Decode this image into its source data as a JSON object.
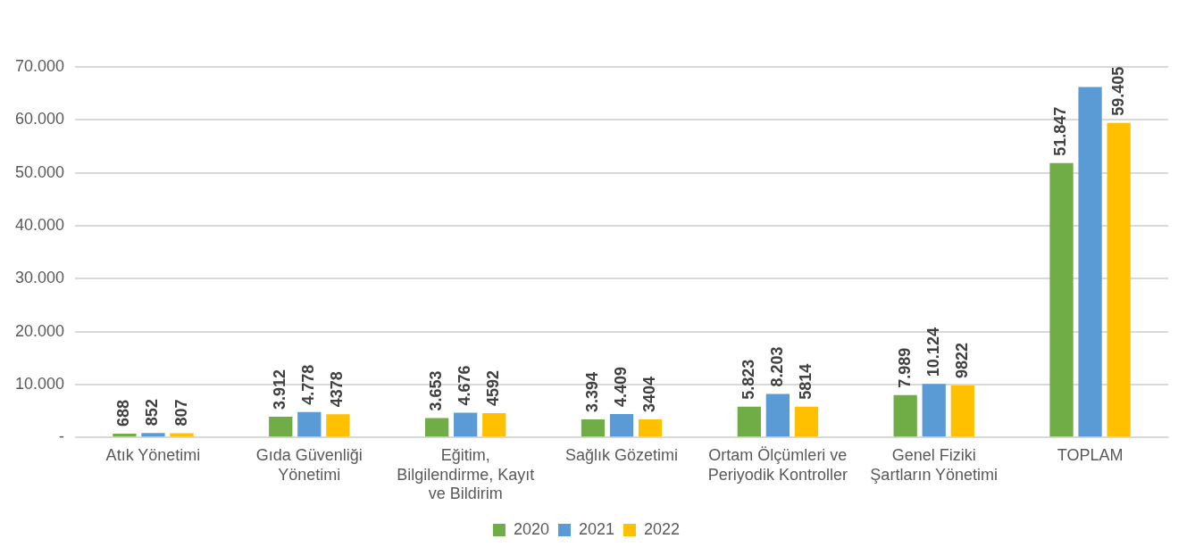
{
  "chart_data": {
    "type": "bar",
    "categories": [
      "Atık Yönetimi",
      "Gıda Güvenliği Yönetimi",
      "Eğitim, Bilgilendirme, Kayıt ve Bildirim",
      "Sağlık Gözetimi",
      "Ortam Ölçümleri ve Periyodik Kontroller",
      "Genel Fiziki Şartların Yönetimi",
      "TOPLAM"
    ],
    "series": [
      {
        "name": "2020",
        "color": "#70ad47",
        "values": [
          688,
          3912,
          3653,
          3394,
          5823,
          7989,
          51847
        ],
        "value_labels": [
          "688",
          "3.912",
          "3.653",
          "3.394",
          "5.823",
          "7.989",
          "51.847"
        ]
      },
      {
        "name": "2021",
        "color": "#5b9bd5",
        "values": [
          852,
          4778,
          4676,
          4409,
          8203,
          10124,
          66200
        ],
        "value_labels": [
          "852",
          "4.778",
          "4.676",
          "4.409",
          "8.203",
          "10.124",
          null
        ]
      },
      {
        "name": "2022",
        "color": "#ffc000",
        "values": [
          807,
          4378,
          4592,
          3404,
          5814,
          9822,
          59405
        ],
        "value_labels": [
          "807",
          "4378",
          "4592",
          "3404",
          "5814",
          "9822",
          "59.405"
        ]
      }
    ],
    "ylim": [
      0,
      70000
    ],
    "yticks": [
      {
        "value": 0,
        "label": "-"
      },
      {
        "value": 10000,
        "label": "10.000"
      },
      {
        "value": 20000,
        "label": "20.000"
      },
      {
        "value": 30000,
        "label": "30.000"
      },
      {
        "value": 40000,
        "label": "40.000"
      },
      {
        "value": 50000,
        "label": "50.000"
      },
      {
        "value": 60000,
        "label": "60.000"
      },
      {
        "value": 70000,
        "label": "70.000"
      }
    ],
    "grid": "y",
    "legend": "bottom"
  }
}
